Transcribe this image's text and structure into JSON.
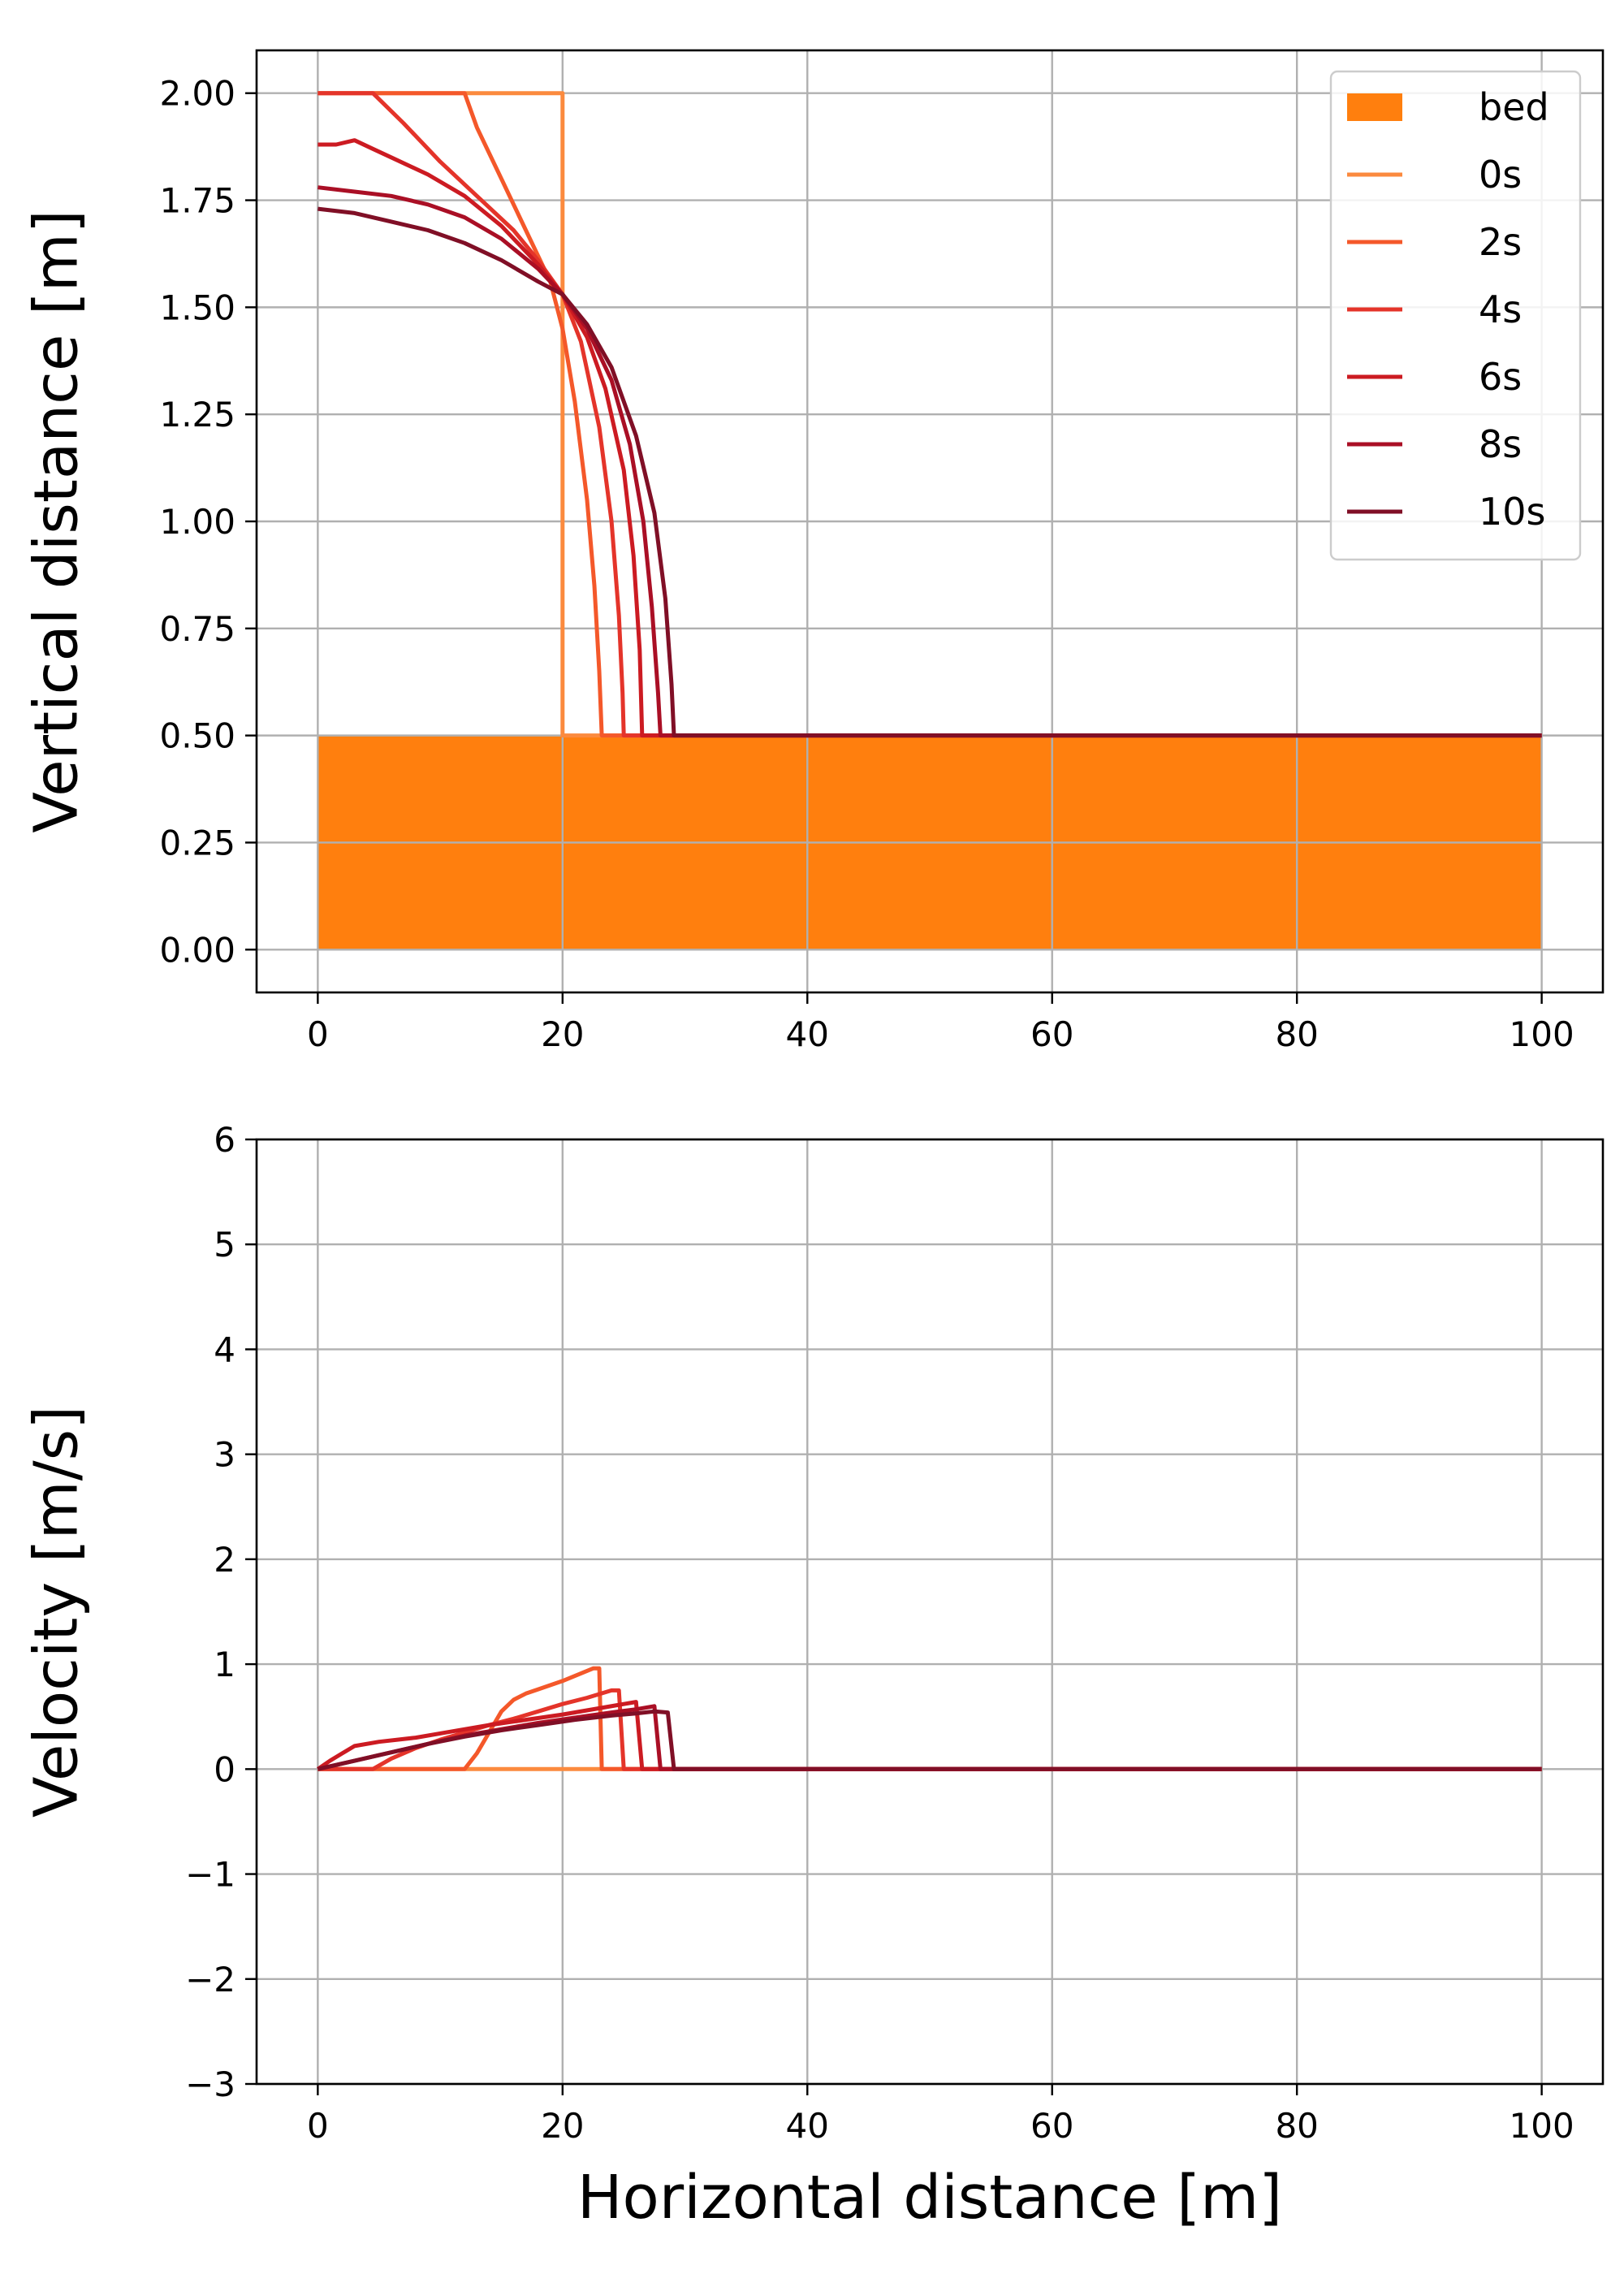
{
  "chart_data": [
    {
      "type": "line",
      "xlabel": "",
      "ylabel": "Vertical distance [m]",
      "xlim": [
        -5,
        105
      ],
      "ylim": [
        -0.1,
        2.1
      ],
      "xticks": [
        0,
        20,
        40,
        60,
        80,
        100
      ],
      "yticks": [
        0.0,
        0.25,
        0.5,
        0.75,
        1.0,
        1.25,
        1.5,
        1.75,
        2.0
      ],
      "ytick_labels": [
        "0.00",
        "0.25",
        "0.50",
        "0.75",
        "1.00",
        "1.25",
        "1.50",
        "1.75",
        "2.00"
      ],
      "grid": true,
      "legend": "top-right",
      "bed": {
        "name": "bed",
        "x": [
          0,
          100
        ],
        "top": 0.5,
        "bottom": 0.0,
        "color": "#ff7f0e"
      },
      "series": [
        {
          "name": "0s",
          "color": "#fb8a3e",
          "x": [
            0,
            20,
            20,
            20,
            100
          ],
          "y": [
            2.0,
            2.0,
            1.5,
            0.5,
            0.5
          ]
        },
        {
          "name": "2s",
          "color": "#f4582a",
          "x": [
            0,
            12,
            13,
            15,
            17,
            19,
            20,
            21,
            22,
            22.6,
            23,
            23.2,
            100
          ],
          "y": [
            2.0,
            2.0,
            1.92,
            1.8,
            1.68,
            1.56,
            1.45,
            1.28,
            1.05,
            0.85,
            0.65,
            0.5,
            0.5
          ]
        },
        {
          "name": "4s",
          "color": "#e4342a",
          "x": [
            0,
            4.5,
            7,
            10,
            13,
            16,
            18,
            20,
            21.5,
            23,
            24,
            24.6,
            24.9,
            25,
            100
          ],
          "y": [
            2.0,
            2.0,
            1.93,
            1.84,
            1.76,
            1.68,
            1.61,
            1.53,
            1.42,
            1.22,
            1.0,
            0.78,
            0.6,
            0.5,
            0.5
          ]
        },
        {
          "name": "6s",
          "color": "#cc1b22",
          "x": [
            0,
            1.5,
            3,
            4.5,
            6,
            9,
            12,
            15,
            18,
            20,
            22,
            23.5,
            25,
            25.8,
            26.3,
            26.5,
            100
          ],
          "y": [
            1.88,
            1.88,
            1.89,
            1.87,
            1.85,
            1.81,
            1.76,
            1.69,
            1.6,
            1.53,
            1.43,
            1.31,
            1.12,
            0.92,
            0.7,
            0.5,
            0.5
          ]
        },
        {
          "name": "8s",
          "color": "#aa0f25",
          "x": [
            0,
            3,
            6,
            9,
            12,
            15,
            18,
            20,
            22,
            24,
            25.5,
            26.6,
            27.3,
            27.8,
            28,
            100
          ],
          "y": [
            1.78,
            1.77,
            1.76,
            1.74,
            1.71,
            1.66,
            1.59,
            1.53,
            1.45,
            1.33,
            1.18,
            1.0,
            0.8,
            0.6,
            0.5,
            0.5
          ]
        },
        {
          "name": "10s",
          "color": "#800f26",
          "x": [
            0,
            3,
            6,
            9,
            12,
            15,
            18,
            20,
            22,
            24,
            26,
            27.5,
            28.4,
            28.9,
            29.1,
            100
          ],
          "y": [
            1.73,
            1.72,
            1.7,
            1.68,
            1.65,
            1.61,
            1.56,
            1.53,
            1.46,
            1.36,
            1.2,
            1.02,
            0.82,
            0.62,
            0.5,
            0.5
          ]
        }
      ]
    },
    {
      "type": "line",
      "xlabel": "Horizontal distance [m]",
      "ylabel": "Velocity [m/s]",
      "xlim": [
        -5,
        105
      ],
      "ylim": [
        -3,
        6
      ],
      "xticks": [
        0,
        20,
        40,
        60,
        80,
        100
      ],
      "yticks": [
        -3,
        -2,
        -1,
        0,
        1,
        2,
        3,
        4,
        5,
        6
      ],
      "ytick_labels": [
        "−3",
        "−2",
        "−1",
        "0",
        "1",
        "2",
        "3",
        "4",
        "5",
        "6"
      ],
      "grid": true,
      "series": [
        {
          "name": "0s",
          "color": "#fb8a3e",
          "x": [
            0,
            100
          ],
          "y": [
            0,
            0
          ]
        },
        {
          "name": "2s",
          "color": "#f4582a",
          "x": [
            0,
            12,
            13,
            14,
            15,
            16,
            17,
            18,
            20,
            22.5,
            23,
            23.2,
            100
          ],
          "y": [
            0,
            0,
            0.15,
            0.35,
            0.55,
            0.66,
            0.72,
            0.76,
            0.84,
            0.96,
            0.96,
            0,
            0
          ]
        },
        {
          "name": "4s",
          "color": "#e4342a",
          "x": [
            0,
            4.5,
            6,
            8,
            10,
            12,
            14,
            16,
            18,
            20,
            22,
            24,
            24.6,
            25,
            100
          ],
          "y": [
            0,
            0,
            0.1,
            0.2,
            0.28,
            0.35,
            0.42,
            0.48,
            0.55,
            0.62,
            0.68,
            0.75,
            0.75,
            0,
            0
          ]
        },
        {
          "name": "6s",
          "color": "#cc1b22",
          "x": [
            0,
            1,
            2,
            3,
            5,
            8,
            11,
            14,
            17,
            20,
            23,
            25,
            26,
            26.5,
            100
          ],
          "y": [
            0,
            0.08,
            0.15,
            0.22,
            0.26,
            0.3,
            0.36,
            0.42,
            0.47,
            0.52,
            0.58,
            0.62,
            0.64,
            0,
            0
          ]
        },
        {
          "name": "8s",
          "color": "#aa0f25",
          "x": [
            0,
            3,
            6,
            9,
            12,
            15,
            18,
            21,
            24,
            26,
            27.5,
            28,
            100
          ],
          "y": [
            0,
            0.08,
            0.16,
            0.24,
            0.32,
            0.38,
            0.44,
            0.49,
            0.54,
            0.57,
            0.6,
            0,
            0
          ]
        },
        {
          "name": "10s",
          "color": "#800f26",
          "x": [
            0,
            3,
            6,
            9,
            12,
            15,
            18,
            21,
            24,
            26,
            27.5,
            28.6,
            29.1,
            100
          ],
          "y": [
            0,
            0.08,
            0.16,
            0.24,
            0.31,
            0.37,
            0.42,
            0.47,
            0.51,
            0.53,
            0.55,
            0.54,
            0,
            0
          ]
        }
      ]
    }
  ]
}
